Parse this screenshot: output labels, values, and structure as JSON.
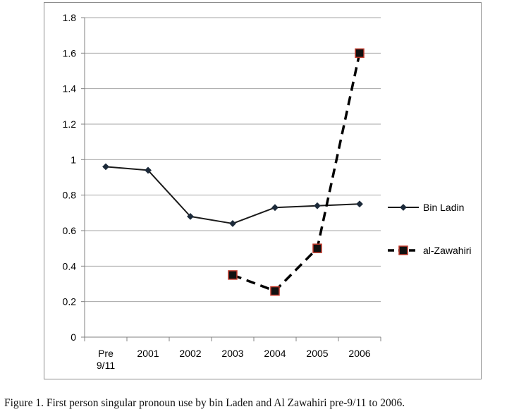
{
  "chart_data": {
    "type": "line",
    "categories": [
      "Pre\n9/11",
      "2001",
      "2002",
      "2003",
      "2004",
      "2005",
      "2006"
    ],
    "series": [
      {
        "name": "Bin Ladin",
        "values": [
          0.96,
          0.94,
          0.68,
          0.64,
          0.73,
          0.74,
          0.75
        ],
        "color": "#1a1a1a",
        "marker": "diamond",
        "line_style": "solid"
      },
      {
        "name": "al-Zawahiri",
        "values": [
          null,
          null,
          null,
          0.35,
          0.26,
          0.5,
          1.6
        ],
        "color": "#000000",
        "marker_fill": "#111111",
        "marker_stroke": "#c0392b",
        "marker": "square",
        "line_style": "dashed"
      }
    ],
    "ylim": [
      0,
      1.8
    ],
    "yticks": [
      "0",
      "0.2",
      "0.4",
      "0.6",
      "0.8",
      "1",
      "1.2",
      "1.4",
      "1.6",
      "1.8"
    ],
    "grid": true,
    "legend_position": "right"
  },
  "caption": "Figure 1.    First person singular pronoun use by bin Laden and Al Zawahiri pre-9/11 to 2006."
}
